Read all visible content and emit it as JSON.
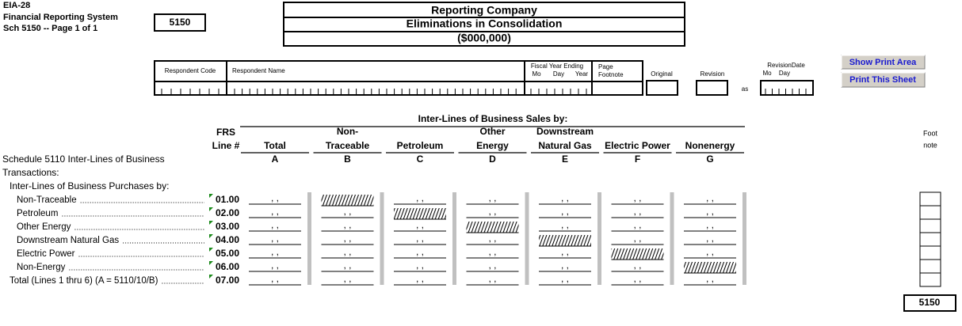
{
  "header": {
    "form_id": "EIA-28",
    "system": "Financial Reporting System",
    "page": "Sch 5150 -- Page 1 of 1",
    "schedule_box": "5150",
    "title_lines": [
      "Reporting Company",
      "Eliminations in Consolidation",
      "($000,000)"
    ]
  },
  "respondent_fields": {
    "respondent_code": "Respondent Code",
    "respondent_name": "Respondent Name",
    "fiscal_year_ending": "Fiscal Year Ending",
    "fiscal_parts": [
      "Mo",
      "Day",
      "Year"
    ],
    "page_footnote": [
      "Page",
      "Footnote"
    ]
  },
  "status": {
    "original": "Original",
    "revision": "Revision",
    "as": "as",
    "revision_date": "RevisionDate",
    "revision_date_parts": [
      "Mo",
      "Day"
    ]
  },
  "buttons": [
    "Show Print Area",
    "Print This Sheet"
  ],
  "table": {
    "group_header": "Inter-Lines of Business Sales by:",
    "line_header": [
      "FRS",
      "Line #"
    ],
    "columns": [
      {
        "name": [
          "Total"
        ],
        "letter": "A"
      },
      {
        "name": [
          "Non-",
          "Traceable"
        ],
        "letter": "B"
      },
      {
        "name": [
          "Petroleum"
        ],
        "letter": "C"
      },
      {
        "name": [
          "Other",
          "Energy"
        ],
        "letter": "D"
      },
      {
        "name": [
          "Downstream",
          "Natural Gas"
        ],
        "letter": "E"
      },
      {
        "name": [
          "Electric Power"
        ],
        "letter": "F"
      },
      {
        "name": [
          "Nonenergy"
        ],
        "letter": "G"
      }
    ],
    "section_title": [
      "Schedule 5110 Inter-Lines of Business",
      "Transactions:"
    ],
    "subsection": "Inter-Lines of Business Purchases by:",
    "rows": [
      {
        "label": "Non-Traceable",
        "line": "01.00"
      },
      {
        "label": "Petroleum",
        "line": "02.00"
      },
      {
        "label": "Other Energy",
        "line": "03.00"
      },
      {
        "label": "Downstream Natural Gas",
        "line": "04.00"
      },
      {
        "label": "Electric Power",
        "line": "05.00"
      },
      {
        "label": "Non-Energy",
        "line": "06.00"
      },
      {
        "label": "Total (Lines 1 thru 6) (A = 5110/10/B)",
        "line": "07.00"
      }
    ],
    "cell_placeholder": ", ,",
    "footnote_header": [
      "Foot",
      "note"
    ]
  },
  "footer_box": "5150"
}
